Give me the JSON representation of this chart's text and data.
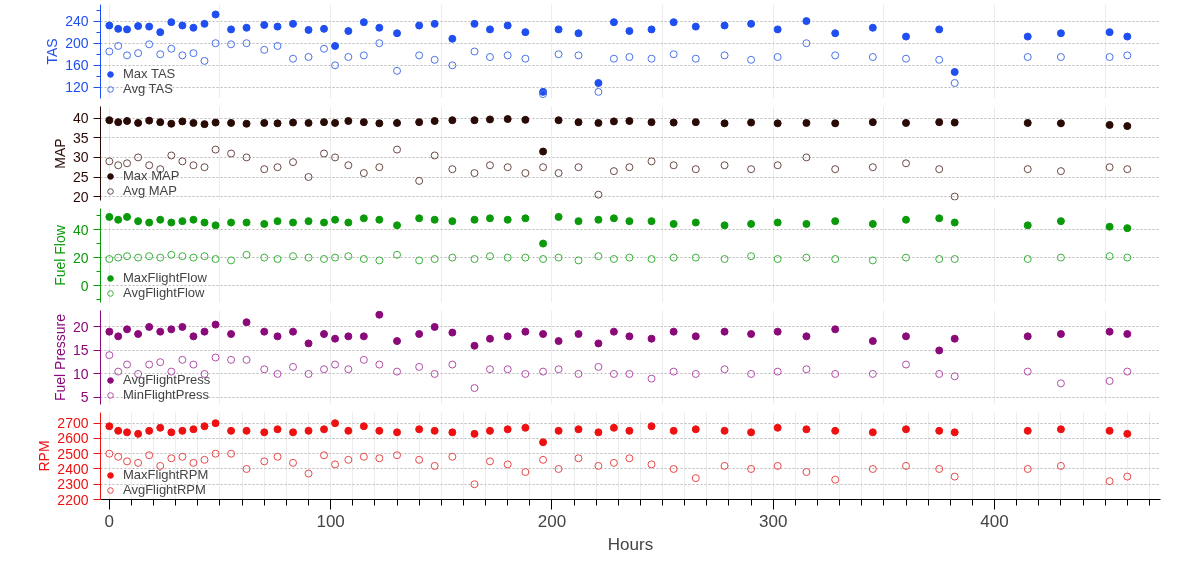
{
  "chart_data": [
    {
      "type": "scatter",
      "ylabel": "TAS",
      "xlim": [
        -4,
        475
      ],
      "ylim": [
        100,
        270
      ],
      "tick_labels": "y",
      "grid": true,
      "legend": "bottom left",
      "marker": "circle",
      "xticks": [
        0,
        {
          "value": 50,
          "label": null
        },
        100,
        {
          "value": 150,
          "label": null
        },
        200,
        {
          "value": 250,
          "label": null
        },
        300,
        {
          "value": 350,
          "label": null
        },
        400,
        {
          "value": 450,
          "label": null
        }
      ],
      "yticks": [
        120,
        {
          "value": 140,
          "label": null
        },
        160,
        {
          "value": 180,
          "label": null
        },
        200,
        {
          "value": 220,
          "label": null
        },
        240,
        {
          "value": 260,
          "label": null
        }
      ],
      "x": [
        0,
        4,
        8,
        13,
        18,
        23,
        28,
        33,
        38,
        43,
        48,
        55,
        62,
        70,
        76,
        83,
        90,
        97,
        102,
        108,
        115,
        122,
        130,
        140,
        147,
        155,
        165,
        172,
        180,
        188,
        196,
        203,
        212,
        221,
        228,
        235,
        245,
        255,
        265,
        278,
        290,
        302,
        315,
        328,
        345,
        360,
        375,
        382,
        415,
        430,
        452,
        460
      ],
      "series": [
        {
          "name": "Max TAS",
          "color": "#1f4ff0",
          "values": [
            232,
            226,
            225,
            231,
            230,
            220,
            238,
            232,
            228,
            235,
            252,
            225,
            228,
            233,
            230,
            235,
            224,
            226,
            195,
            222,
            238,
            228,
            218,
            232,
            235,
            208,
            235,
            225,
            232,
            220,
            112,
            225,
            218,
            128,
            238,
            222,
            225,
            238,
            230,
            232,
            235,
            225,
            240,
            218,
            228,
            212,
            225,
            148,
            212,
            218,
            220,
            212
          ]
        },
        {
          "name": "Avg TAS",
          "color": "#4a74e8",
          "values": [
            185,
            195,
            178,
            182,
            198,
            180,
            190,
            178,
            182,
            168,
            200,
            198,
            200,
            188,
            195,
            172,
            175,
            190,
            160,
            175,
            178,
            200,
            150,
            178,
            170,
            160,
            185,
            175,
            178,
            172,
            108,
            180,
            178,
            112,
            172,
            175,
            172,
            180,
            172,
            178,
            170,
            175,
            200,
            178,
            175,
            172,
            170,
            128,
            175,
            175,
            175,
            178
          ]
        }
      ]
    },
    {
      "type": "scatter",
      "ylabel": "MAP",
      "xlim": [
        -4,
        475
      ],
      "ylim": [
        19,
        43
      ],
      "tick_labels": "y",
      "grid": true,
      "legend": "bottom left",
      "marker": "circle",
      "xticks": [
        0,
        {
          "value": 50,
          "label": null
        },
        100,
        {
          "value": 150,
          "label": null
        },
        200,
        {
          "value": 250,
          "label": null
        },
        300,
        {
          "value": 350,
          "label": null
        },
        400,
        {
          "value": 450,
          "label": null
        }
      ],
      "yticks": [
        20,
        25,
        30,
        35,
        40
      ],
      "x": [
        0,
        4,
        8,
        13,
        18,
        23,
        28,
        33,
        38,
        43,
        48,
        55,
        62,
        70,
        76,
        83,
        90,
        97,
        102,
        108,
        115,
        122,
        130,
        140,
        147,
        155,
        165,
        172,
        180,
        188,
        196,
        203,
        212,
        221,
        228,
        235,
        245,
        255,
        265,
        278,
        290,
        302,
        315,
        328,
        345,
        360,
        375,
        382,
        415,
        430,
        452,
        460
      ],
      "series": [
        {
          "name": "Max MAP",
          "color": "#2a0a05",
          "values": [
            39.5,
            39,
            39.3,
            38.8,
            39.4,
            39,
            38.6,
            39.2,
            38.8,
            38.5,
            38.9,
            38.8,
            38.6,
            38.8,
            38.7,
            38.9,
            38.8,
            39,
            38.8,
            39.3,
            39,
            38.7,
            38.8,
            39,
            39.3,
            39.5,
            39.5,
            39.7,
            39.8,
            39.6,
            31.5,
            39.5,
            39,
            38.8,
            39.2,
            39.3,
            39,
            38.9,
            39,
            38.7,
            38.9,
            38.7,
            38.8,
            38.7,
            39,
            38.8,
            39,
            38.9,
            38.8,
            38.7,
            38.3,
            38
          ]
        },
        {
          "name": "Avg MAP",
          "color": "#6b4a45",
          "values": [
            29,
            28,
            28.5,
            30,
            28,
            27,
            30.5,
            29,
            28,
            27.5,
            32,
            31,
            30,
            27,
            27.5,
            28.8,
            25,
            31,
            30,
            28,
            26,
            27.5,
            32,
            24,
            30.5,
            27,
            26,
            28,
            27.5,
            26,
            27.5,
            26,
            27.5,
            20.5,
            26.5,
            27.5,
            29,
            28,
            27,
            28,
            27,
            28,
            30,
            27,
            27.5,
            28.5,
            27,
            20,
            27,
            26.5,
            27.5,
            27
          ]
        }
      ]
    },
    {
      "type": "scatter",
      "ylabel": "Fuel Flow",
      "xlim": [
        -4,
        475
      ],
      "ylim": [
        -12,
        55
      ],
      "tick_labels": "y",
      "grid": true,
      "legend": "bottom left",
      "marker": "circle",
      "xticks": [
        0,
        {
          "value": 50,
          "label": null
        },
        100,
        {
          "value": 150,
          "label": null
        },
        200,
        {
          "value": 250,
          "label": null
        },
        300,
        {
          "value": 350,
          "label": null
        },
        400,
        {
          "value": 450,
          "label": null
        }
      ],
      "yticks": [
        {
          "value": -10,
          "label": null
        },
        0,
        {
          "value": 10,
          "label": null
        },
        20,
        {
          "value": 30,
          "label": null
        },
        40,
        {
          "value": 50,
          "label": null
        }
      ],
      "x": [
        0,
        4,
        8,
        13,
        18,
        23,
        28,
        33,
        38,
        43,
        48,
        55,
        62,
        70,
        76,
        83,
        90,
        97,
        102,
        108,
        115,
        122,
        130,
        140,
        147,
        155,
        165,
        172,
        180,
        188,
        196,
        203,
        212,
        221,
        228,
        235,
        245,
        255,
        265,
        278,
        290,
        302,
        315,
        328,
        345,
        360,
        375,
        382,
        415,
        430,
        452,
        460
      ],
      "series": [
        {
          "name": "MaxFlightFlow",
          "color": "#0a9a0a",
          "values": [
            49,
            47,
            49,
            46,
            45,
            47,
            45,
            46,
            47,
            45,
            43,
            45,
            45,
            44,
            46,
            45,
            46,
            45,
            47,
            45,
            48,
            47,
            43,
            48,
            47,
            46,
            47,
            48,
            47,
            48,
            30,
            49,
            46,
            47,
            48,
            46,
            46,
            44,
            45,
            43,
            44,
            45,
            44,
            46,
            44,
            47,
            48,
            45,
            43,
            46,
            42,
            41
          ]
        },
        {
          "name": "AvgFlightFlow",
          "color": "#3bb03b",
          "values": [
            19,
            20,
            21,
            20,
            21,
            20,
            22,
            21,
            20,
            21,
            19,
            18,
            22,
            20,
            19,
            21,
            20,
            19,
            20,
            21,
            19,
            18,
            22,
            18,
            19,
            20,
            19,
            21,
            20,
            20,
            19,
            20,
            18,
            21,
            19,
            20,
            19,
            20,
            20,
            19,
            21,
            19,
            20,
            19,
            18,
            20,
            19,
            19,
            19,
            20,
            21,
            20
          ]
        }
      ]
    },
    {
      "type": "scatter",
      "ylabel": "Fuel Pressure",
      "xlim": [
        -4,
        475
      ],
      "ylim": [
        3.5,
        23.5
      ],
      "tick_labels": "y",
      "grid": true,
      "legend": "bottom left",
      "marker": "circle",
      "xticks": [
        0,
        {
          "value": 50,
          "label": null
        },
        100,
        {
          "value": 150,
          "label": null
        },
        200,
        {
          "value": 250,
          "label": null
        },
        300,
        {
          "value": 350,
          "label": null
        },
        400,
        {
          "value": 450,
          "label": null
        }
      ],
      "yticks": [
        5,
        10,
        15,
        20
      ],
      "x": [
        0,
        4,
        8,
        13,
        18,
        23,
        28,
        33,
        38,
        43,
        48,
        55,
        62,
        70,
        76,
        83,
        90,
        97,
        102,
        108,
        115,
        122,
        130,
        140,
        147,
        155,
        165,
        172,
        180,
        188,
        196,
        203,
        212,
        221,
        228,
        235,
        245,
        255,
        265,
        278,
        290,
        302,
        315,
        328,
        345,
        360,
        375,
        382,
        415,
        430,
        452,
        460
      ],
      "series": [
        {
          "name": "AvgFlightPress",
          "color": "#8b0a7a",
          "values": [
            19,
            18,
            19.5,
            18.5,
            20,
            19,
            19.5,
            20,
            18,
            19,
            20.5,
            18.5,
            21,
            19,
            18,
            19,
            16.5,
            18.5,
            17.5,
            18,
            18,
            22.6,
            17,
            18.5,
            20,
            18.8,
            16,
            17.5,
            18,
            19,
            18.5,
            17,
            18.5,
            16.5,
            19,
            18,
            17.5,
            19,
            18,
            19,
            18.5,
            19,
            18,
            19.5,
            17,
            18,
            15,
            17.5,
            18,
            18.5,
            19,
            18.5
          ]
        },
        {
          "name": "MinFlightPress",
          "color": "#b050a8",
          "values": [
            14,
            10.5,
            12,
            10,
            12,
            12.5,
            10.5,
            13,
            12,
            10,
            13.5,
            13,
            13,
            11,
            10,
            11.5,
            10,
            11,
            12,
            11,
            13,
            12,
            10.5,
            11.5,
            10,
            12,
            7,
            11,
            11,
            10,
            10.5,
            11,
            10,
            11.5,
            10,
            10,
            9,
            10.5,
            10,
            11,
            10,
            10.5,
            11,
            10,
            10,
            12,
            10,
            9.5,
            10.5,
            8,
            8.5,
            10.5
          ]
        }
      ]
    },
    {
      "type": "scatter",
      "ylabel": "RPM",
      "xlabel": "Hours",
      "xlim": [
        -4,
        475
      ],
      "ylim": [
        2200,
        2770
      ],
      "grid": true,
      "legend": "bottom left",
      "marker": "circle",
      "xticks": [
        0,
        {
          "value": 10,
          "label": null
        },
        {
          "value": 20,
          "label": null
        },
        {
          "value": 30,
          "label": null
        },
        {
          "value": 40,
          "label": null
        },
        {
          "value": 50,
          "label": null
        },
        {
          "value": 60,
          "label": null
        },
        {
          "value": 70,
          "label": null
        },
        {
          "value": 80,
          "label": null
        },
        {
          "value": 90,
          "label": null
        },
        100,
        {
          "value": 110,
          "label": null
        },
        {
          "value": 120,
          "label": null
        },
        {
          "value": 130,
          "label": null
        },
        {
          "value": 140,
          "label": null
        },
        {
          "value": 150,
          "label": null
        },
        {
          "value": 160,
          "label": null
        },
        {
          "value": 170,
          "label": null
        },
        {
          "value": 180,
          "label": null
        },
        {
          "value": 190,
          "label": null
        },
        200,
        {
          "value": 210,
          "label": null
        },
        {
          "value": 220,
          "label": null
        },
        {
          "value": 230,
          "label": null
        },
        {
          "value": 240,
          "label": null
        },
        {
          "value": 250,
          "label": null
        },
        {
          "value": 260,
          "label": null
        },
        {
          "value": 270,
          "label": null
        },
        {
          "value": 280,
          "label": null
        },
        {
          "value": 290,
          "label": null
        },
        300,
        {
          "value": 310,
          "label": null
        },
        {
          "value": 320,
          "label": null
        },
        {
          "value": 330,
          "label": null
        },
        {
          "value": 340,
          "label": null
        },
        {
          "value": 350,
          "label": null
        },
        {
          "value": 360,
          "label": null
        },
        {
          "value": 370,
          "label": null
        },
        {
          "value": 380,
          "label": null
        },
        {
          "value": 390,
          "label": null
        },
        400,
        {
          "value": 410,
          "label": null
        },
        {
          "value": 420,
          "label": null
        },
        {
          "value": 430,
          "label": null
        },
        {
          "value": 440,
          "label": null
        },
        {
          "value": 450,
          "label": null
        },
        {
          "value": 460,
          "label": null
        },
        {
          "value": 470,
          "label": null
        }
      ],
      "yticks": [
        2200,
        2300,
        2400,
        2500,
        2600,
        2700
      ],
      "x": [
        0,
        4,
        8,
        13,
        18,
        23,
        28,
        33,
        38,
        43,
        48,
        55,
        62,
        70,
        76,
        83,
        90,
        97,
        102,
        108,
        115,
        122,
        130,
        140,
        147,
        155,
        165,
        172,
        180,
        188,
        196,
        203,
        212,
        221,
        228,
        235,
        245,
        255,
        265,
        278,
        290,
        302,
        315,
        328,
        345,
        360,
        375,
        382,
        415,
        430,
        452,
        460
      ],
      "series": [
        {
          "name": "MaxFlightRPM",
          "color": "#ee1111",
          "values": [
            2680,
            2650,
            2640,
            2630,
            2650,
            2670,
            2640,
            2650,
            2660,
            2680,
            2700,
            2650,
            2650,
            2640,
            2660,
            2640,
            2650,
            2660,
            2700,
            2650,
            2680,
            2650,
            2640,
            2660,
            2650,
            2640,
            2630,
            2650,
            2660,
            2670,
            2575,
            2650,
            2660,
            2640,
            2670,
            2650,
            2680,
            2650,
            2660,
            2650,
            2640,
            2670,
            2660,
            2650,
            2640,
            2660,
            2650,
            2640,
            2650,
            2660,
            2650,
            2630
          ]
        },
        {
          "name": "AvgFlightRPM",
          "color": "#e84848",
          "values": [
            2500,
            2480,
            2450,
            2440,
            2490,
            2420,
            2470,
            2480,
            2440,
            2460,
            2500,
            2500,
            2400,
            2450,
            2480,
            2440,
            2370,
            2490,
            2430,
            2460,
            2480,
            2470,
            2490,
            2460,
            2420,
            2480,
            2300,
            2450,
            2430,
            2380,
            2460,
            2400,
            2470,
            2420,
            2440,
            2470,
            2430,
            2400,
            2340,
            2420,
            2400,
            2420,
            2380,
            2330,
            2400,
            2420,
            2400,
            2350,
            2400,
            2420,
            2320,
            2350
          ]
        }
      ]
    }
  ]
}
